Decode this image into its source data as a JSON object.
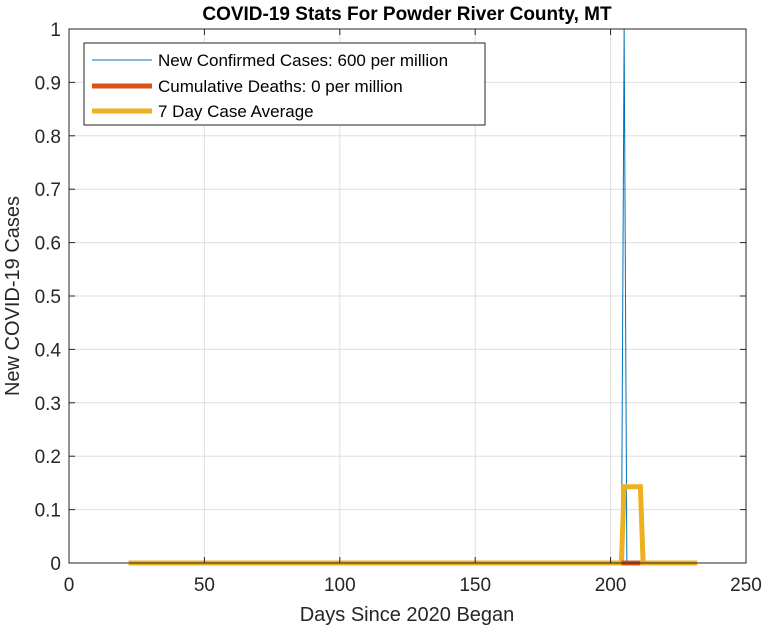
{
  "chart_data": {
    "type": "line",
    "title": "COVID-19 Stats For Powder River County, MT",
    "xlabel": "Days Since 2020 Began",
    "ylabel": "New COVID-19 Cases",
    "xlim": [
      0,
      250
    ],
    "ylim": [
      0,
      1
    ],
    "xticks": [
      "0",
      "50",
      "100",
      "150",
      "200",
      "250"
    ],
    "yticks": [
      "0",
      "0.1",
      "0.2",
      "0.3",
      "0.4",
      "0.5",
      "0.6",
      "0.7",
      "0.8",
      "0.9",
      "1"
    ],
    "grid": true,
    "legend_position": "top-left",
    "series": [
      {
        "name": "New Confirmed Cases: 600 per million",
        "color": "#0072BD",
        "style": "thin",
        "x": [
          22,
          204,
          205,
          206,
          232
        ],
        "y": [
          0,
          0,
          1,
          0,
          0
        ]
      },
      {
        "name": "Cumulative Deaths: 0 per million",
        "color": "#D95319",
        "style": "thick",
        "x": [
          204,
          211
        ],
        "y": [
          0,
          0
        ]
      },
      {
        "name": "7 Day Case Average",
        "color": "#EDB120",
        "style": "thick",
        "x": [
          22,
          204,
          205,
          211,
          212,
          232
        ],
        "y": [
          0,
          0,
          0.1429,
          0.1429,
          0,
          0
        ]
      }
    ]
  }
}
